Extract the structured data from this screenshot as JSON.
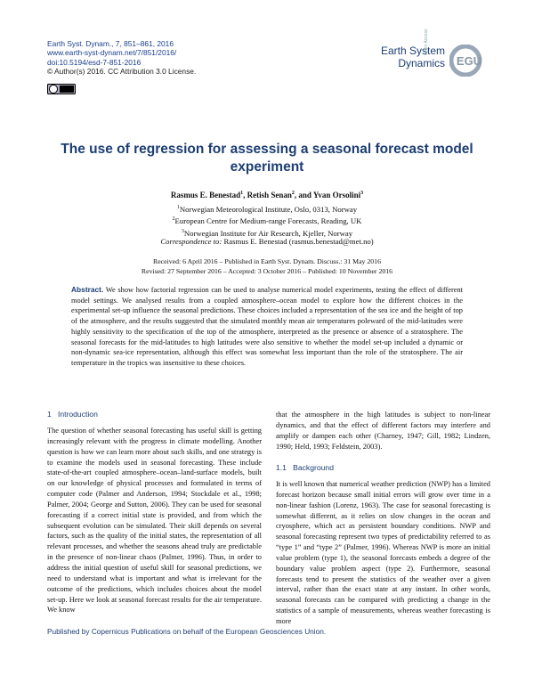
{
  "header": {
    "journal": "Earth Syst. Dynam., 7, 851–861, 2016",
    "url": "www.earth-syst-dynam.net/7/851/2016/",
    "doi": "doi:10.5194/esd-7-851-2016",
    "license": "© Author(s) 2016. CC Attribution 3.0 License."
  },
  "logo": {
    "line1": "Earth System",
    "line2": "Dynamics",
    "open_access": "Open Access",
    "egu": "EGU"
  },
  "title": "The use of regression for assessing a seasonal forecast model experiment",
  "authors": [
    {
      "name": "Rasmus E. Benestad",
      "sup": "1"
    },
    {
      "name": "Retish Senan",
      "sup": "2"
    },
    {
      "name": "Yvan Orsolini",
      "sup": "3"
    }
  ],
  "author_joiners": [
    ", ",
    ", and "
  ],
  "affiliations": [
    {
      "sup": "1",
      "text": "Norwegian Meteorological Institute, Oslo, 0313, Norway"
    },
    {
      "sup": "2",
      "text": "European Centre for Medium-range Forecasts, Reading, UK"
    },
    {
      "sup": "3",
      "text": "Norwegian Institute for Air Research, Kjeller, Norway"
    }
  ],
  "correspondence": {
    "label": "Correspondence to:",
    "text": "Rasmus E. Benestad (rasmus.benestad@met.no)"
  },
  "dates": [
    "Received: 6 April 2016 – Published in Earth Syst. Dynam. Discuss.: 31 May 2016",
    "Revised: 27 September 2016 – Accepted: 3 October 2016 – Published: 10 November 2016"
  ],
  "abstract": {
    "label": "Abstract.",
    "text": "We show how factorial regression can be used to analyse numerical model experiments, testing the effect of different model settings. We analysed results from a coupled atmosphere–ocean model to explore how the different choices in the experimental set-up influence the seasonal predictions. These choices included a representation of the sea ice and the height of top of the atmosphere, and the results suggested that the simulated monthly mean air temperatures poleward of the mid-latitudes were highly sensitivity to the specification of the top of the atmosphere, interpreted as the presence or absence of a stratosphere. The seasonal forecasts for the mid-latitudes to high latitudes were also sensitive to whether the model set-up included a dynamic or non-dynamic sea-ice representation, although this effect was somewhat less important than the role of the stratosphere. The air temperature in the tropics was insensitive to these choices."
  },
  "section": {
    "number": "1",
    "title": "Introduction",
    "left_text": "The question of whether seasonal forecasting has useful skill is getting increasingly relevant with the progress in climate modelling. Another question is how we can learn more about such skills, and one strategy is to examine the models used in seasonal forecasting. These include state-of-the-art coupled atmosphere–ocean–land-surface models, built on our knowledge of physical processes and formulated in terms of computer code (Palmer and Anderson, 1994; Stockdale et al., 1998; Palmer, 2004; George and Sutton, 2006). They can be used for seasonal forecasting if a correct initial state is provided, and from which the subsequent evolution can be simulated. Their skill depends on several factors, such as the quality of the initial states, the representation of all relevant processes, and whether the seasons ahead truly are predictable in the presence of non-linear chaos (Palmer, 1996). Thus, in order to address the initial question of useful skill for seasonal predictions, we need to understand what is important and what is irrelevant for the outcome of the predictions, which includes choices about the model set-up. Here we look at seasonal forecast results for the air temperature. We know",
    "right_text": "that the atmosphere in the high latitudes is subject to non-linear dynamics, and that the effect of different factors may interfere and amplify or dampen each other (Charney, 1947; Gill, 1982; Lindzen, 1990; Held, 1993; Feldstein, 2003)."
  },
  "subsection": {
    "number": "1.1",
    "title": "Background",
    "text": "It is well known that numerical weather prediction (NWP) has a limited forecast horizon because small initial errors will grow over time in a non-linear fashion (Lorenz, 1963). The case for seasonal forecasting is somewhat different, as it relies on slow changes in the ocean and cryosphere, which act as persistent boundary conditions. NWP and seasonal forecasting represent two types of predictability referred to as “type 1” and “type 2” (Palmer, 1996). Whereas NWP is more an initial value problem (type 1), the seasonal forecasts embeds a degree of the boundary value problem aspect (type 2). Furthermore, seasonal forecasts tend to present the statistics of the weather over a given interval, rather than the exact state at any instant. In other words, seasonal forecasts can be compared with predicting a change in the statistics of a sample of measurements, whereas weather forecasting is more"
  },
  "footer": "Published by Copernicus Publications on behalf of the European Geosciences Union."
}
